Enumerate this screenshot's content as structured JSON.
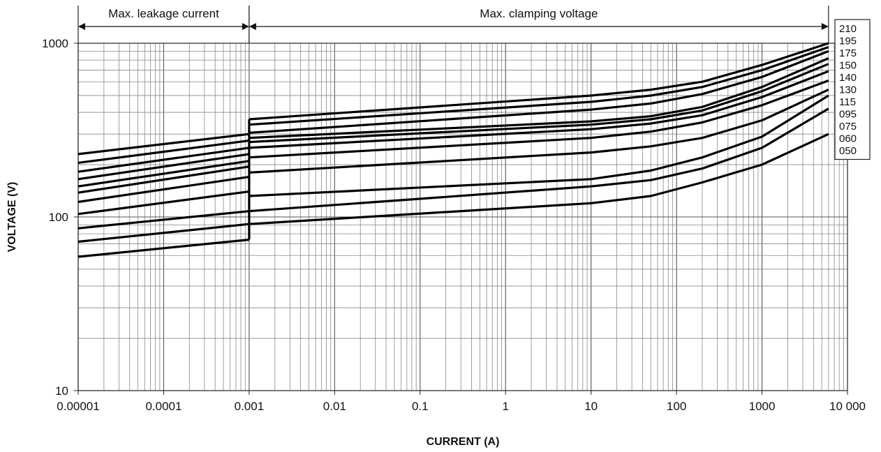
{
  "chart_data": {
    "type": "line",
    "title": "",
    "xlabel": "CURRENT (A)",
    "ylabel": "VOLTAGE (V)",
    "x_scale": "log",
    "y_scale": "log",
    "xlim": [
      1e-05,
      10000
    ],
    "ylim": [
      10,
      1000
    ],
    "grid": true,
    "x_tick_values": [
      1e-05,
      0.0001,
      0.001,
      0.01,
      0.1,
      1,
      10,
      100,
      1000,
      10000
    ],
    "x_tick_labels": [
      "0.00001",
      "0.0001",
      "0.001",
      "0.01",
      "0.1",
      "1",
      "10",
      "100",
      "1000",
      "10 000"
    ],
    "y_tick_values": [
      10,
      100,
      1000
    ],
    "y_tick_labels": [
      "10",
      "100",
      "1000"
    ],
    "annotations": {
      "leakage": {
        "text": "Max. leakage current",
        "x_from": 1e-05,
        "x_to": 0.001
      },
      "clamping": {
        "text": "Max. clamping voltage",
        "x_from": 0.001,
        "x_to": 6000
      }
    },
    "legend_placement": "right",
    "legend_entries": [
      "210",
      "195",
      "175",
      "150",
      "140",
      "130",
      "115",
      "095",
      "075",
      "060",
      "050"
    ],
    "series": [
      {
        "name": "210",
        "leakage": {
          "x": [
            1e-05,
            0.001
          ],
          "y": [
            230,
            300
          ]
        },
        "clamping": {
          "x": [
            0.001,
            10,
            50,
            200,
            1000,
            6000
          ],
          "y": [
            365,
            500,
            540,
            600,
            750,
            1000
          ]
        }
      },
      {
        "name": "195",
        "leakage": {
          "x": [
            1e-05,
            0.001
          ],
          "y": [
            205,
            275
          ]
        },
        "clamping": {
          "x": [
            0.001,
            10,
            50,
            200,
            1000,
            6000
          ],
          "y": [
            340,
            460,
            500,
            560,
            700,
            950
          ]
        }
      },
      {
        "name": "175",
        "leakage": {
          "x": [
            1e-05,
            0.001
          ],
          "y": [
            182,
            250
          ]
        },
        "clamping": {
          "x": [
            0.001,
            10,
            50,
            200,
            1000,
            6000
          ],
          "y": [
            305,
            415,
            450,
            510,
            640,
            900
          ]
        }
      },
      {
        "name": "150",
        "leakage": {
          "x": [
            1e-05,
            0.001
          ],
          "y": [
            165,
            230
          ]
        },
        "clamping": {
          "x": [
            0.001,
            10,
            50,
            200,
            1000,
            6000
          ],
          "y": [
            285,
            355,
            380,
            430,
            560,
            820
          ]
        }
      },
      {
        "name": "140",
        "leakage": {
          "x": [
            1e-05,
            0.001
          ],
          "y": [
            150,
            210
          ]
        },
        "clamping": {
          "x": [
            0.001,
            10,
            50,
            200,
            1000,
            6000
          ],
          "y": [
            270,
            340,
            365,
            410,
            530,
            760
          ]
        }
      },
      {
        "name": "130",
        "leakage": {
          "x": [
            1e-05,
            0.001
          ],
          "y": [
            138,
            195
          ]
        },
        "clamping": {
          "x": [
            0.001,
            10,
            50,
            200,
            1000,
            6000
          ],
          "y": [
            250,
            320,
            345,
            385,
            490,
            690
          ]
        }
      },
      {
        "name": "115",
        "leakage": {
          "x": [
            1e-05,
            0.001
          ],
          "y": [
            122,
            170
          ]
        },
        "clamping": {
          "x": [
            0.001,
            10,
            50,
            200,
            1000,
            6000
          ],
          "y": [
            220,
            285,
            310,
            350,
            440,
            610
          ]
        }
      },
      {
        "name": "095",
        "leakage": {
          "x": [
            1e-05,
            0.001
          ],
          "y": [
            104,
            140
          ]
        },
        "clamping": {
          "x": [
            0.001,
            10,
            50,
            200,
            1000,
            6000
          ],
          "y": [
            180,
            235,
            255,
            285,
            360,
            540
          ]
        }
      },
      {
        "name": "075",
        "leakage": {
          "x": [
            1e-05,
            0.001
          ],
          "y": [
            86,
            108
          ]
        },
        "clamping": {
          "x": [
            0.001,
            10,
            50,
            200,
            1000,
            6000
          ],
          "y": [
            132,
            165,
            185,
            220,
            290,
            500
          ]
        }
      },
      {
        "name": "060",
        "leakage": {
          "x": [
            1e-05,
            0.001
          ],
          "y": [
            72,
            91
          ]
        },
        "clamping": {
          "x": [
            0.001,
            10,
            50,
            200,
            1000,
            6000
          ],
          "y": [
            108,
            150,
            163,
            190,
            250,
            420
          ]
        }
      },
      {
        "name": "050",
        "leakage": {
          "x": [
            1e-05,
            0.001
          ],
          "y": [
            59,
            74
          ]
        },
        "clamping": {
          "x": [
            0.001,
            10,
            50,
            200,
            1000,
            6000
          ],
          "y": [
            91,
            120,
            132,
            158,
            200,
            300
          ]
        }
      }
    ]
  }
}
